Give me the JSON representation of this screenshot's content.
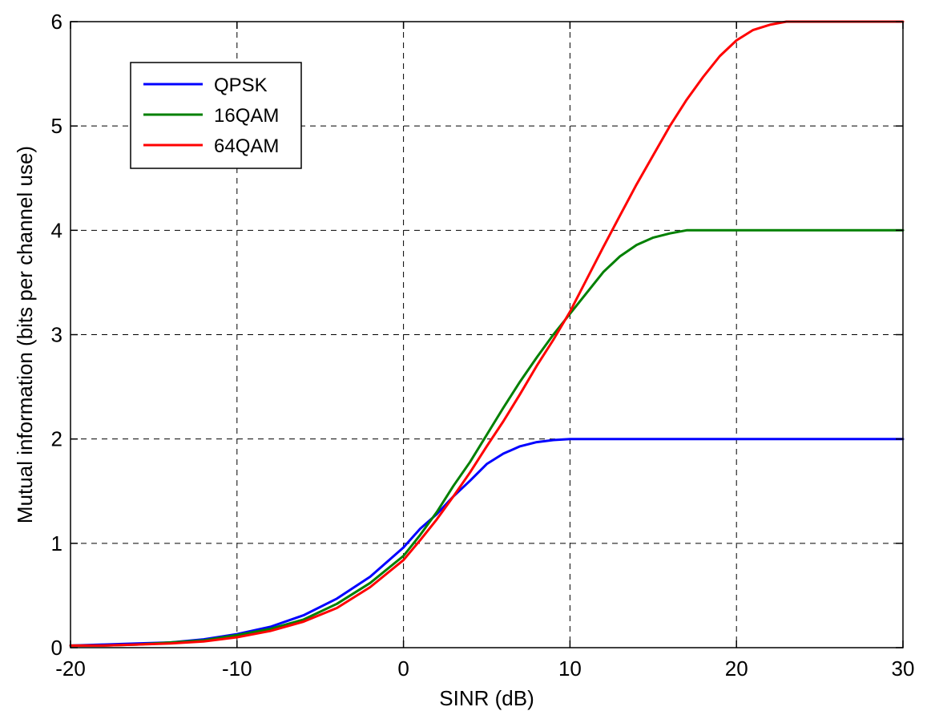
{
  "chart_data": {
    "type": "line",
    "xlabel": "SINR (dB)",
    "ylabel": "Mutual information (bits per channel use)",
    "xlim": [
      -20,
      30
    ],
    "ylim": [
      0,
      6
    ],
    "xticks": [
      -20,
      -10,
      0,
      10,
      20,
      30
    ],
    "yticks": [
      0,
      1,
      2,
      3,
      4,
      5,
      6
    ],
    "xtick_labels": [
      "-20",
      "-10",
      "0",
      "10",
      "20",
      "30"
    ],
    "ytick_labels": [
      "0",
      "1",
      "2",
      "3",
      "4",
      "5",
      "6"
    ],
    "grid": true,
    "legend_position": "top-left",
    "series": [
      {
        "name": "QPSK",
        "color": "#0000ff",
        "x": [
          -20,
          -18,
          -16,
          -14,
          -12,
          -10,
          -8,
          -6,
          -4,
          -2,
          0,
          1,
          2,
          3,
          4,
          5,
          6,
          7,
          8,
          9,
          10,
          15,
          20,
          25,
          30
        ],
        "y": [
          0.02,
          0.03,
          0.04,
          0.05,
          0.08,
          0.13,
          0.2,
          0.31,
          0.47,
          0.68,
          0.96,
          1.14,
          1.28,
          1.45,
          1.6,
          1.76,
          1.86,
          1.93,
          1.97,
          1.99,
          2.0,
          2.0,
          2.0,
          2.0,
          2.0
        ]
      },
      {
        "name": "16QAM",
        "color": "#008000",
        "x": [
          -20,
          -18,
          -16,
          -14,
          -12,
          -10,
          -8,
          -6,
          -4,
          -2,
          0,
          1,
          2,
          3,
          4,
          5,
          6,
          7,
          8,
          9,
          10,
          11,
          12,
          13,
          14,
          15,
          16,
          17,
          20,
          25,
          30
        ],
        "y": [
          0.02,
          0.02,
          0.03,
          0.05,
          0.07,
          0.12,
          0.18,
          0.27,
          0.42,
          0.62,
          0.88,
          1.08,
          1.3,
          1.55,
          1.78,
          2.04,
          2.3,
          2.55,
          2.78,
          3.0,
          3.2,
          3.4,
          3.6,
          3.75,
          3.86,
          3.93,
          3.97,
          4.0,
          4.0,
          4.0,
          4.0
        ]
      },
      {
        "name": "64QAM",
        "color": "#ff0000",
        "x": [
          -20,
          -18,
          -16,
          -14,
          -12,
          -10,
          -8,
          -6,
          -4,
          -2,
          0,
          1,
          2,
          3,
          4,
          5,
          6,
          7,
          8,
          9,
          10,
          11,
          12,
          13,
          14,
          15,
          16,
          17,
          18,
          19,
          20,
          21,
          22,
          23,
          25,
          30
        ],
        "y": [
          0.02,
          0.02,
          0.03,
          0.04,
          0.06,
          0.1,
          0.16,
          0.25,
          0.38,
          0.58,
          0.84,
          1.03,
          1.23,
          1.45,
          1.68,
          1.93,
          2.17,
          2.43,
          2.7,
          2.95,
          3.22,
          3.53,
          3.84,
          4.14,
          4.44,
          4.72,
          5.0,
          5.25,
          5.47,
          5.67,
          5.82,
          5.92,
          5.97,
          6.0,
          6.0,
          6.0
        ]
      }
    ]
  }
}
